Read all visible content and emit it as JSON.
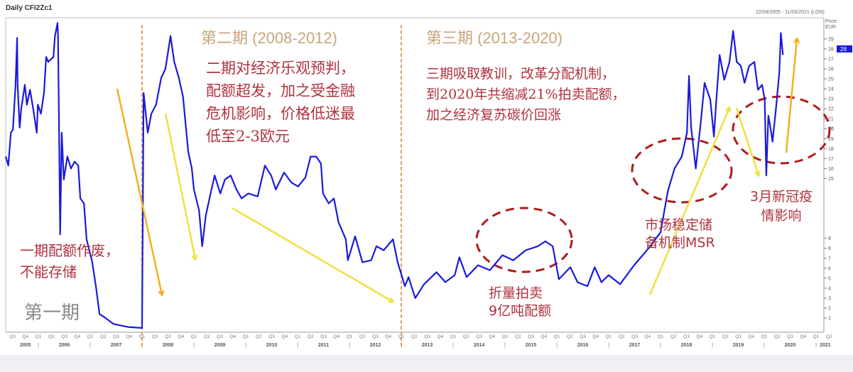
{
  "header": {
    "title": "Daily CFI2Zc1",
    "date_range": "22/04/2005 - 11/05/2021 (LON)",
    "price_label": "Price",
    "unit_label": "EUR",
    "last_price_tag": "28"
  },
  "colors": {
    "price_line": "#1a1adc",
    "arrow_orange": "#f2b01e",
    "arrow_yellow": "#f0e040",
    "ellipse": "#b01c1c",
    "phase_divider": "#e0a060",
    "annotation_text": "#b0323f",
    "phase_title": "#c9a57c",
    "phase1_label": "#8a8a8a"
  },
  "annotations": {
    "phase1_label": "第一期",
    "phase1_note": [
      "一期配额作废，",
      "不能存储"
    ],
    "phase2_title": "第二期 (2008-2012)",
    "phase2_note": [
      "二期对经济乐观预判，",
      "配额超发，加之受金融",
      "危机影响，价格低迷最",
      "低至2-3欧元"
    ],
    "phase3_title": "第三期 (2013-2020)",
    "phase3_note": [
      "三期吸取教训，改革分配机制，",
      "到2020年共缩减21%拍卖配额，",
      "加之经济复苏碳价回涨"
    ],
    "backloading_note": [
      "折量拍卖",
      "9亿吨配额"
    ],
    "msr_note": [
      "市场稳定储",
      "备机制MSR"
    ],
    "covid_note": [
      "3月新冠疫",
      "情影响"
    ]
  },
  "chart_data": {
    "type": "line",
    "title": "Daily CFI2Zc1",
    "ylabel": "Price EUR",
    "xlim": [
      2005.5,
      2021.25
    ],
    "ylim": [
      0,
      30
    ],
    "y_ticks_upper": [
      15,
      16,
      17,
      18,
      19,
      20,
      21,
      22,
      23,
      24,
      25,
      26,
      27,
      28,
      29
    ],
    "y_ticks_lower": [
      1,
      2,
      3,
      4,
      5,
      6,
      7,
      8,
      9
    ],
    "y_axis_side": "right",
    "grid": false,
    "x_years": [
      "2005",
      "2006",
      "2007",
      "2008",
      "2009",
      "2010",
      "2011",
      "2012",
      "2013",
      "2014",
      "2015",
      "2016",
      "2017",
      "2018",
      "2019",
      "2020",
      "2021"
    ],
    "x_quarters": [
      "Q1",
      "Q2",
      "Q3",
      "Q4"
    ],
    "phase_dividers": [
      2008.0,
      2013.0
    ],
    "series": [
      {
        "points": [
          [
            2005.37,
            17.2
          ],
          [
            2005.42,
            16.3
          ],
          [
            2005.47,
            19.6
          ],
          [
            2005.51,
            19.9
          ],
          [
            2005.56,
            24.4
          ],
          [
            2005.59,
            29.1
          ],
          [
            2005.6,
            24.4
          ],
          [
            2005.64,
            20.1
          ],
          [
            2005.67,
            22.0
          ],
          [
            2005.74,
            24.4
          ],
          [
            2005.78,
            22.4
          ],
          [
            2005.84,
            23.9
          ],
          [
            2005.9,
            22.0
          ],
          [
            2005.97,
            19.6
          ],
          [
            2005.99,
            22.4
          ],
          [
            2006.05,
            21.5
          ],
          [
            2006.11,
            23.6
          ],
          [
            2006.15,
            27.2
          ],
          [
            2006.19,
            26.7
          ],
          [
            2006.29,
            27.2
          ],
          [
            2006.32,
            29.3
          ],
          [
            2006.37,
            30.6
          ],
          [
            2006.38,
            29.3
          ],
          [
            2006.4,
            19.6
          ],
          [
            2006.42,
            9.4
          ],
          [
            2006.45,
            19.6
          ],
          [
            2006.49,
            14.9
          ],
          [
            2006.56,
            17.2
          ],
          [
            2006.63,
            16.0
          ],
          [
            2006.7,
            16.7
          ],
          [
            2006.77,
            16.3
          ],
          [
            2006.81,
            13.0
          ],
          [
            2006.88,
            12.5
          ],
          [
            2006.93,
            8.9
          ],
          [
            2007.04,
            6.6
          ],
          [
            2007.11,
            4.2
          ],
          [
            2007.18,
            1.4
          ],
          [
            2007.27,
            1.1
          ],
          [
            2007.45,
            0.4
          ],
          [
            2007.73,
            0.1
          ],
          [
            2008.0,
            0.0
          ],
          [
            2008.03,
            23.6
          ],
          [
            2008.11,
            19.6
          ],
          [
            2008.18,
            21.5
          ],
          [
            2008.27,
            22.4
          ],
          [
            2008.37,
            25.1
          ],
          [
            2008.45,
            26.0
          ],
          [
            2008.55,
            29.3
          ],
          [
            2008.62,
            26.7
          ],
          [
            2008.71,
            25.1
          ],
          [
            2008.79,
            23.2
          ],
          [
            2008.89,
            17.7
          ],
          [
            2008.96,
            16.0
          ],
          [
            2009.0,
            13.9
          ],
          [
            2009.1,
            11.8
          ],
          [
            2009.16,
            8.2
          ],
          [
            2009.23,
            11.3
          ],
          [
            2009.33,
            13.7
          ],
          [
            2009.4,
            15.3
          ],
          [
            2009.51,
            13.5
          ],
          [
            2009.6,
            14.9
          ],
          [
            2009.71,
            15.3
          ],
          [
            2009.82,
            13.9
          ],
          [
            2009.92,
            13.0
          ],
          [
            2010.05,
            13.5
          ],
          [
            2010.23,
            13.2
          ],
          [
            2010.37,
            16.3
          ],
          [
            2010.49,
            15.3
          ],
          [
            2010.58,
            13.9
          ],
          [
            2010.74,
            15.6
          ],
          [
            2010.88,
            14.6
          ],
          [
            2011.01,
            14.2
          ],
          [
            2011.15,
            15.1
          ],
          [
            2011.25,
            17.2
          ],
          [
            2011.36,
            17.2
          ],
          [
            2011.45,
            16.5
          ],
          [
            2011.49,
            13.5
          ],
          [
            2011.6,
            12.5
          ],
          [
            2011.7,
            13.0
          ],
          [
            2011.79,
            10.6
          ],
          [
            2011.93,
            8.9
          ],
          [
            2011.97,
            6.8
          ],
          [
            2012.11,
            9.2
          ],
          [
            2012.25,
            6.6
          ],
          [
            2012.42,
            6.8
          ],
          [
            2012.52,
            8.2
          ],
          [
            2012.66,
            7.8
          ],
          [
            2012.84,
            8.9
          ],
          [
            2012.93,
            6.6
          ],
          [
            2013.07,
            4.2
          ],
          [
            2013.14,
            5.1
          ],
          [
            2013.27,
            3.0
          ],
          [
            2013.44,
            4.4
          ],
          [
            2013.68,
            5.6
          ],
          [
            2013.85,
            4.6
          ],
          [
            2014.03,
            5.3
          ],
          [
            2014.12,
            7.1
          ],
          [
            2014.26,
            5.1
          ],
          [
            2014.48,
            6.3
          ],
          [
            2014.71,
            5.8
          ],
          [
            2014.95,
            7.3
          ],
          [
            2015.16,
            6.8
          ],
          [
            2015.4,
            7.8
          ],
          [
            2015.63,
            8.2
          ],
          [
            2015.78,
            8.7
          ],
          [
            2015.92,
            8.2
          ],
          [
            2016.04,
            4.9
          ],
          [
            2016.26,
            6.1
          ],
          [
            2016.4,
            4.6
          ],
          [
            2016.59,
            4.2
          ],
          [
            2016.73,
            6.1
          ],
          [
            2016.86,
            4.6
          ],
          [
            2017.0,
            5.3
          ],
          [
            2017.22,
            4.4
          ],
          [
            2017.32,
            5.1
          ],
          [
            2017.49,
            6.3
          ],
          [
            2017.77,
            8.0
          ],
          [
            2018.0,
            9.6
          ],
          [
            2018.14,
            13.7
          ],
          [
            2018.27,
            16.0
          ],
          [
            2018.41,
            17.2
          ],
          [
            2018.51,
            19.6
          ],
          [
            2018.55,
            25.3
          ],
          [
            2018.59,
            20.1
          ],
          [
            2018.68,
            16.0
          ],
          [
            2018.78,
            20.8
          ],
          [
            2018.85,
            24.6
          ],
          [
            2018.96,
            22.9
          ],
          [
            2019.03,
            19.2
          ],
          [
            2019.07,
            22.4
          ],
          [
            2019.14,
            27.4
          ],
          [
            2019.23,
            24.9
          ],
          [
            2019.33,
            26.7
          ],
          [
            2019.4,
            29.8
          ],
          [
            2019.47,
            26.7
          ],
          [
            2019.55,
            26.3
          ],
          [
            2019.62,
            24.6
          ],
          [
            2019.71,
            26.3
          ],
          [
            2019.81,
            26.7
          ],
          [
            2019.88,
            23.9
          ],
          [
            2019.96,
            24.4
          ],
          [
            2020.01,
            22.9
          ],
          [
            2020.04,
            15.3
          ],
          [
            2020.08,
            21.3
          ],
          [
            2020.12,
            20.1
          ],
          [
            2020.16,
            18.7
          ],
          [
            2020.23,
            22.2
          ],
          [
            2020.29,
            25.6
          ],
          [
            2020.32,
            29.6
          ],
          [
            2020.36,
            27.4
          ]
        ]
      }
    ]
  }
}
